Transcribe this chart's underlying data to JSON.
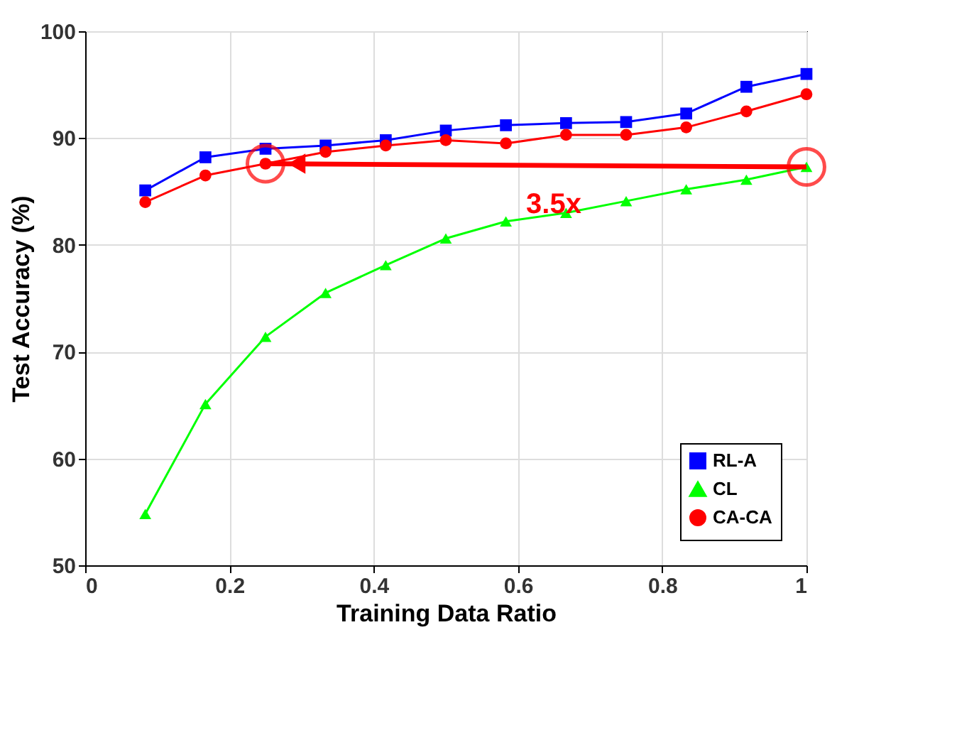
{
  "chart_data": {
    "type": "line",
    "xlabel": "Training Data Ratio",
    "ylabel": "Test Accuracy (%)",
    "x": [
      0.0833,
      0.1667,
      0.25,
      0.3333,
      0.4167,
      0.5,
      0.5833,
      0.6667,
      0.75,
      0.8333,
      0.9167,
      1.0
    ],
    "series": [
      {
        "name": "RL-A",
        "color": "#0000ff",
        "marker": "square",
        "values": [
          85.1,
          88.2,
          89.0,
          89.3,
          89.8,
          90.7,
          91.2,
          91.4,
          91.5,
          92.3,
          94.8,
          96.0
        ]
      },
      {
        "name": "CL",
        "color": "#00ff00",
        "marker": "triangle",
        "values": [
          54.8,
          65.1,
          71.4,
          75.5,
          78.1,
          80.6,
          82.2,
          83.0,
          84.1,
          85.2,
          86.1,
          87.3
        ]
      },
      {
        "name": "CA-CA",
        "color": "#ff0000",
        "marker": "circle",
        "values": [
          84.0,
          86.5,
          87.6,
          88.7,
          89.3,
          89.8,
          89.5,
          90.3,
          90.3,
          91.0,
          92.5,
          94.1
        ]
      }
    ],
    "xlim": [
      0,
      1
    ],
    "xticks": [
      0,
      0.2,
      0.4,
      0.6,
      0.8,
      1
    ],
    "ylim": [
      50,
      100
    ],
    "yticks": [
      50,
      60,
      70,
      80,
      90,
      100
    ],
    "grid": true,
    "legend": "bottom right",
    "line_style": "solid",
    "annotations": [
      "3.5x"
    ]
  }
}
